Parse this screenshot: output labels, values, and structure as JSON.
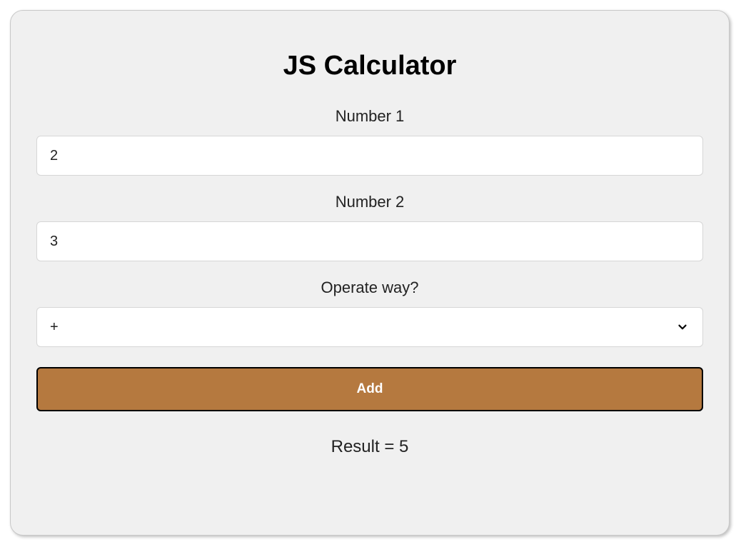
{
  "title": "JS Calculator",
  "number1": {
    "label": "Number 1",
    "value": "2"
  },
  "number2": {
    "label": "Number 2",
    "value": "3"
  },
  "operator": {
    "label": "Operate way?",
    "selected": "+",
    "options": [
      "+",
      "-",
      "*",
      "/"
    ]
  },
  "button": {
    "label": "Add",
    "background_color": "#b5793f",
    "text_color": "#ffffff",
    "border_color": "#000000"
  },
  "result": {
    "text": "Result = 5"
  },
  "colors": {
    "card_background": "#f0f0f0",
    "card_border": "#c8c8c8",
    "input_background": "#ffffff",
    "input_border": "#d6d6d6",
    "text": "#222222"
  }
}
